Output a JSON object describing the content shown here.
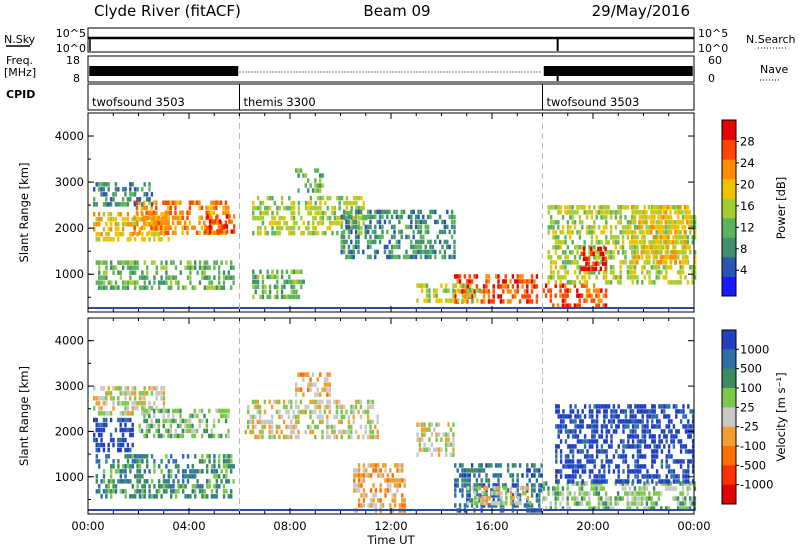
{
  "header": {
    "title_left": "Clyde River (fitACF)",
    "title_center": "Beam 09",
    "title_right": "29/May/2016"
  },
  "panels": {
    "nsky_label": "N.Sky",
    "nsky_ticks": [
      "10^5",
      "10^0"
    ],
    "nsearch_label": "N.Search",
    "nsearch_ticks": [
      "10^5",
      "10^0"
    ],
    "freq_label_1": "Freq.",
    "freq_label_2": "[MHz]",
    "freq_ticks": [
      "18",
      "8"
    ],
    "nave_label": "Nave",
    "nave_ticks": [
      "60",
      "0"
    ],
    "cpid_label": "CPID",
    "cpid_segments": [
      {
        "label": "twofsound 3503",
        "start_h": 0,
        "end_h": 6
      },
      {
        "label": "themis 3300",
        "start_h": 6,
        "end_h": 18
      },
      {
        "label": "twofsound 3503",
        "start_h": 18,
        "end_h": 24
      }
    ]
  },
  "colorbars": {
    "power": {
      "label": "Power [dB]",
      "ticks": [
        "28",
        "24",
        "20",
        "16",
        "12",
        "8",
        "4"
      ],
      "colors": [
        "#1a1aff",
        "#2b56b0",
        "#3f8f70",
        "#5cb35c",
        "#a6cc33",
        "#f2c200",
        "#ff8c00",
        "#ff4500",
        "#e60000"
      ]
    },
    "velocity": {
      "label": "Velocity [m s⁻¹]",
      "ticks": [
        "1000",
        "500",
        "100",
        "25",
        "-25",
        "-100",
        "-500",
        "-1000"
      ],
      "colors": [
        "#2040c0",
        "#2f6fa8",
        "#3a8a62",
        "#7ac74a",
        "#c8c8c8",
        "#f0a030",
        "#ff7000",
        "#ff3000",
        "#e00000"
      ]
    }
  },
  "chart_data": [
    {
      "type": "heatmap",
      "title": "Power",
      "xlabel": "",
      "ylabel": "Slant Range [km]",
      "x_range_hours": [
        0,
        24
      ],
      "ylim": [
        180,
        4500
      ],
      "y_ticks": [
        1000,
        2000,
        3000,
        4000
      ],
      "colorbar_label": "Power [dB]",
      "colorbar_ticks": [
        28,
        24,
        20,
        16,
        12,
        8,
        4
      ],
      "regions": [
        {
          "t0": 0.2,
          "t1": 3.2,
          "r0": 1800,
          "r1": 2350,
          "level": 5
        },
        {
          "t0": 1.8,
          "t1": 5.6,
          "r0": 1900,
          "r1": 2600,
          "level": 6
        },
        {
          "t0": 4.6,
          "t1": 5.8,
          "r0": 1950,
          "r1": 2300,
          "level": 7
        },
        {
          "t0": 0.3,
          "t1": 5.8,
          "r0": 700,
          "r1": 1300,
          "level": 3
        },
        {
          "t0": 0.2,
          "t1": 2.5,
          "r0": 2500,
          "r1": 3000,
          "level": 2
        },
        {
          "t0": 6.5,
          "t1": 11.0,
          "r0": 1900,
          "r1": 2700,
          "level": 4
        },
        {
          "t0": 8.2,
          "t1": 9.4,
          "r0": 2800,
          "r1": 3300,
          "level": 3
        },
        {
          "t0": 6.5,
          "t1": 8.5,
          "r0": 500,
          "r1": 1100,
          "level": 3
        },
        {
          "t0": 10.0,
          "t1": 14.5,
          "r0": 1400,
          "r1": 2400,
          "level": 2
        },
        {
          "t0": 14.5,
          "t1": 17.8,
          "r0": 350,
          "r1": 1000,
          "level": 7
        },
        {
          "t0": 13.0,
          "t1": 15.5,
          "r0": 400,
          "r1": 800,
          "level": 4
        },
        {
          "t0": 18.0,
          "t1": 20.5,
          "r0": 350,
          "r1": 800,
          "level": 7
        },
        {
          "t0": 18.2,
          "t1": 24.0,
          "r0": 800,
          "r1": 2500,
          "level": 4
        },
        {
          "t0": 19.5,
          "t1": 20.5,
          "r0": 1100,
          "r1": 1600,
          "level": 8
        },
        {
          "t0": 21.5,
          "t1": 23.8,
          "r0": 1200,
          "r1": 2500,
          "level": 5
        }
      ]
    },
    {
      "type": "heatmap",
      "title": "Velocity",
      "xlabel": "Time UT",
      "ylabel": "Slant Range [km]",
      "x_range_hours": [
        0,
        24
      ],
      "x_ticks": [
        "00:00",
        "04:00",
        "08:00",
        "12:00",
        "16:00",
        "20:00",
        "00:00"
      ],
      "ylim": [
        180,
        4500
      ],
      "y_ticks": [
        1000,
        2000,
        3000,
        4000
      ],
      "colorbar_label": "Velocity [m s⁻¹]",
      "colorbar_ticks": [
        1000,
        500,
        100,
        25,
        -25,
        -100,
        -500,
        -1000
      ],
      "regions": [
        {
          "t0": 0.2,
          "t1": 3.0,
          "r0": 2400,
          "r1": 3000,
          "level": 4
        },
        {
          "t0": 2.0,
          "t1": 5.6,
          "r0": 1900,
          "r1": 2500,
          "level": 3
        },
        {
          "t0": 0.2,
          "t1": 1.8,
          "r0": 1600,
          "r1": 2300,
          "level": 0
        },
        {
          "t0": 0.3,
          "t1": 5.8,
          "r0": 600,
          "r1": 1500,
          "level": 2
        },
        {
          "t0": 6.2,
          "t1": 11.5,
          "r0": 1900,
          "r1": 2700,
          "level": 4
        },
        {
          "t0": 8.2,
          "t1": 9.6,
          "r0": 2800,
          "r1": 3300,
          "level": 5
        },
        {
          "t0": 10.5,
          "t1": 12.5,
          "r0": 300,
          "r1": 1300,
          "level": 5
        },
        {
          "t0": 13.0,
          "t1": 14.5,
          "r0": 1500,
          "r1": 2200,
          "level": 4
        },
        {
          "t0": 14.5,
          "t1": 18.0,
          "r0": 300,
          "r1": 1300,
          "level": 1
        },
        {
          "t0": 15.0,
          "t1": 17.5,
          "r0": 400,
          "r1": 800,
          "level": 4
        },
        {
          "t0": 18.0,
          "t1": 24.0,
          "r0": 300,
          "r1": 900,
          "level": 3
        },
        {
          "t0": 18.5,
          "t1": 24.0,
          "r0": 900,
          "r1": 2600,
          "level": 0
        }
      ]
    }
  ]
}
